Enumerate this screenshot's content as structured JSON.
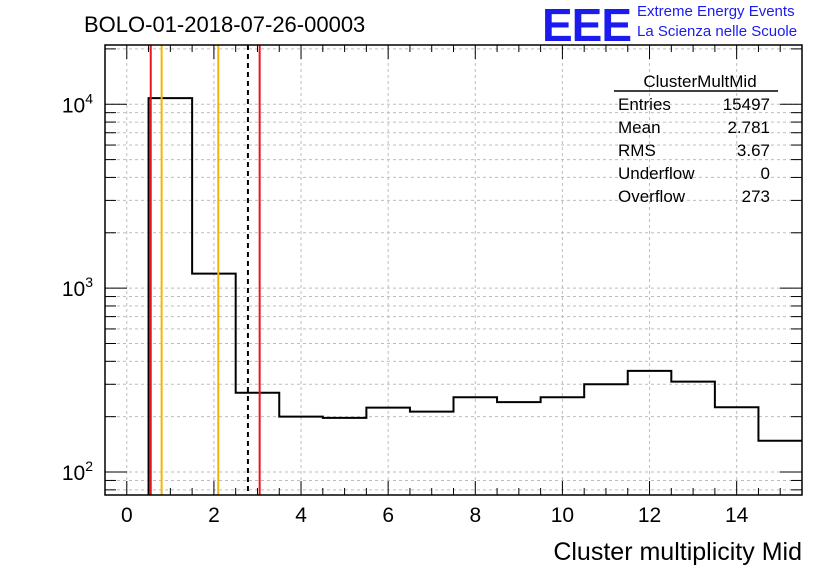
{
  "header": {
    "run_title": "BOLO-01-2018-07-26-00003",
    "logo_text": "EEE",
    "logo_line1": "Extreme Energy Events",
    "logo_line2": "La Scienza nelle Scuole"
  },
  "stats_box": {
    "name": "ClusterMultMid",
    "rows": [
      {
        "label": "Entries",
        "value": "15497"
      },
      {
        "label": "Mean",
        "value": "2.781"
      },
      {
        "label": "RMS",
        "value": "3.67"
      },
      {
        "label": "Underflow",
        "value": "0"
      },
      {
        "label": "Overflow",
        "value": "273"
      }
    ]
  },
  "colors": {
    "histogram": "#000000",
    "red_line": "#e8161c",
    "orange_line": "#f2b705",
    "mean_line": "#000000",
    "grid": "#bdbdbd"
  },
  "chart_data": {
    "type": "histogram",
    "xlabel": "Cluster multiplicity Mid",
    "ylabel": "",
    "xlim": [
      -0.5,
      15.5
    ],
    "ylim": [
      75,
      21000
    ],
    "log_y": true,
    "grid": true,
    "bin_width": 1,
    "bins": [
      {
        "x": 1,
        "value": 10800
      },
      {
        "x": 2,
        "value": 1200
      },
      {
        "x": 3,
        "value": 270
      },
      {
        "x": 4,
        "value": 200
      },
      {
        "x": 5,
        "value": 197
      },
      {
        "x": 6,
        "value": 224
      },
      {
        "x": 7,
        "value": 213
      },
      {
        "x": 8,
        "value": 255
      },
      {
        "x": 9,
        "value": 240
      },
      {
        "x": 10,
        "value": 255
      },
      {
        "x": 11,
        "value": 300
      },
      {
        "x": 12,
        "value": 355
      },
      {
        "x": 13,
        "value": 310
      },
      {
        "x": 14,
        "value": 225
      },
      {
        "x": 15,
        "value": 148
      }
    ],
    "x_ticks": [
      0,
      2,
      4,
      6,
      8,
      10,
      12,
      14
    ],
    "y_ticks": [
      {
        "value": 100,
        "base": "10",
        "exp": "2"
      },
      {
        "value": 1000,
        "base": "10",
        "exp": "3"
      },
      {
        "value": 10000,
        "base": "10",
        "exp": "4"
      }
    ],
    "vertical_lines": [
      {
        "x": 0.55,
        "color": "red",
        "style": "solid"
      },
      {
        "x": 0.8,
        "color": "orange",
        "style": "solid"
      },
      {
        "x": 2.1,
        "color": "orange",
        "style": "solid"
      },
      {
        "x": 2.781,
        "color": "mean",
        "style": "dashed"
      },
      {
        "x": 3.05,
        "color": "red",
        "style": "solid"
      }
    ]
  }
}
